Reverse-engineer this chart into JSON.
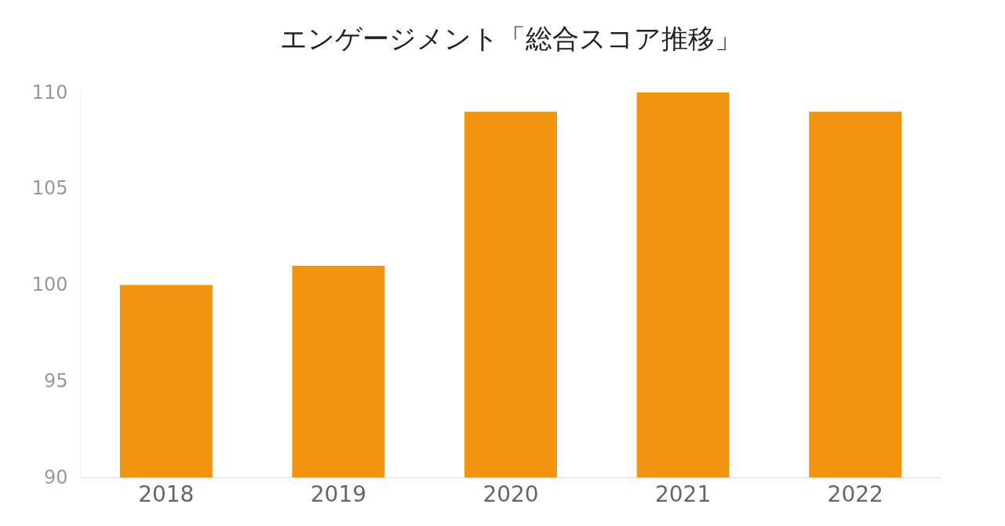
{
  "chart_data": {
    "type": "bar",
    "title": "エンゲージメント「総合スコア推移」",
    "categories": [
      "2018",
      "2019",
      "2020",
      "2021",
      "2022"
    ],
    "values": [
      100,
      101,
      109,
      110,
      109
    ],
    "color": "#f39410",
    "ylim": [
      90,
      110
    ],
    "yticks": [
      90,
      95,
      100,
      105,
      110
    ],
    "grid": false
  }
}
